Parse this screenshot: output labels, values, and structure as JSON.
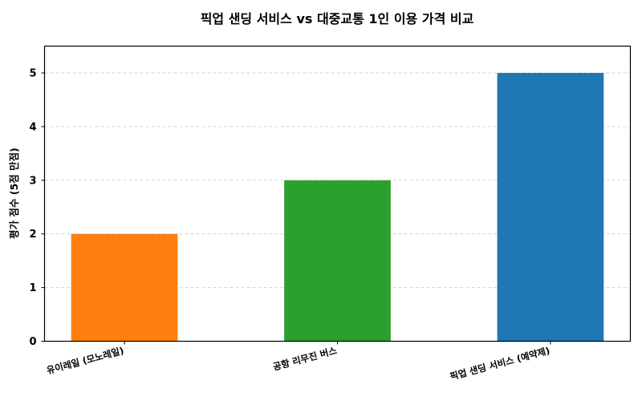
{
  "chart_data": {
    "type": "bar",
    "title": "픽업 샌딩 서비스 vs 대중교통 1인 이용 가격 비교",
    "xlabel": "",
    "ylabel": "평가 점수 (5점 만점)",
    "categories": [
      "유이레일 (모노레일)",
      "공항 리무진 버스",
      "픽업 샌딩 서비스 (예약제)"
    ],
    "values": [
      2,
      3,
      5
    ],
    "colors": [
      "#ff7f0e",
      "#2ca02c",
      "#1f77b4"
    ],
    "ylim": [
      0,
      5.5
    ],
    "yticks": [
      0,
      1,
      2,
      3,
      4,
      5
    ],
    "grid": {
      "axis": "y",
      "style": "dashed",
      "color": "#cccccc"
    },
    "legend": null,
    "xtick_rotation": 15
  }
}
